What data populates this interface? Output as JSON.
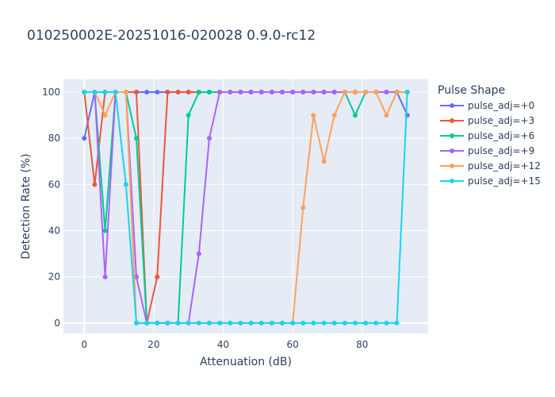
{
  "chart_data": {
    "type": "line",
    "title": "010250002E-20251016-020028 0.9.0-rc12",
    "xlabel": "Attenuation (dB)",
    "ylabel": "Detection Rate (%)",
    "xlim": [
      -6,
      99
    ],
    "ylim": [
      -4.5,
      105.5
    ],
    "xticks": [
      0,
      20,
      40,
      60,
      80
    ],
    "yticks": [
      0,
      20,
      40,
      60,
      80,
      100
    ],
    "grid": true,
    "legend": {
      "title": "Pulse Shape",
      "position": "right"
    },
    "x": [
      0,
      3,
      6,
      9,
      12,
      15,
      18,
      21,
      24,
      27,
      30,
      33,
      36,
      39,
      42,
      45,
      48,
      51,
      54,
      57,
      60,
      63,
      66,
      69,
      72,
      75,
      78,
      81,
      84,
      87,
      90,
      93
    ],
    "series": [
      {
        "name": "pulse_adj=+0",
        "color": "#636efa",
        "values": [
          80,
          100,
          100,
          100,
          100,
          100,
          100,
          100,
          100,
          100,
          100,
          100,
          100,
          100,
          100,
          100,
          100,
          100,
          100,
          100,
          100,
          100,
          100,
          100,
          100,
          100,
          100,
          100,
          100,
          100,
          100,
          90
        ]
      },
      {
        "name": "pulse_adj=+3",
        "color": "#ef553b",
        "values": [
          100,
          60,
          100,
          100,
          100,
          100,
          0,
          20,
          100,
          100,
          100,
          100,
          100,
          100,
          100,
          100,
          100,
          100,
          100,
          100,
          100,
          100,
          100,
          100,
          100,
          100,
          100,
          100,
          100,
          100,
          100,
          100
        ]
      },
      {
        "name": "pulse_adj=+6",
        "color": "#00cc96",
        "values": [
          100,
          100,
          40,
          100,
          100,
          80,
          0,
          0,
          0,
          0,
          90,
          100,
          100,
          100,
          100,
          100,
          100,
          100,
          100,
          100,
          100,
          100,
          100,
          100,
          100,
          100,
          90,
          100,
          100,
          100,
          100,
          100
        ]
      },
      {
        "name": "pulse_adj=+9",
        "color": "#ab63fa",
        "values": [
          100,
          100,
          20,
          100,
          100,
          20,
          0,
          0,
          0,
          0,
          0,
          30,
          80,
          100,
          100,
          100,
          100,
          100,
          100,
          100,
          100,
          100,
          100,
          100,
          100,
          100,
          100,
          100,
          100,
          100,
          100,
          100
        ]
      },
      {
        "name": "pulse_adj=+12",
        "color": "#ffa15a",
        "values": [
          100,
          100,
          90,
          100,
          100,
          0,
          0,
          0,
          0,
          0,
          0,
          0,
          0,
          0,
          0,
          0,
          0,
          0,
          0,
          0,
          0,
          50,
          90,
          70,
          90,
          100,
          100,
          100,
          100,
          90,
          100,
          100
        ]
      },
      {
        "name": "pulse_adj=+15",
        "color": "#19d3f3",
        "values": [
          100,
          100,
          100,
          100,
          60,
          0,
          0,
          0,
          0,
          0,
          0,
          0,
          0,
          0,
          0,
          0,
          0,
          0,
          0,
          0,
          0,
          0,
          0,
          0,
          0,
          0,
          0,
          0,
          0,
          0,
          0,
          100
        ]
      }
    ]
  }
}
